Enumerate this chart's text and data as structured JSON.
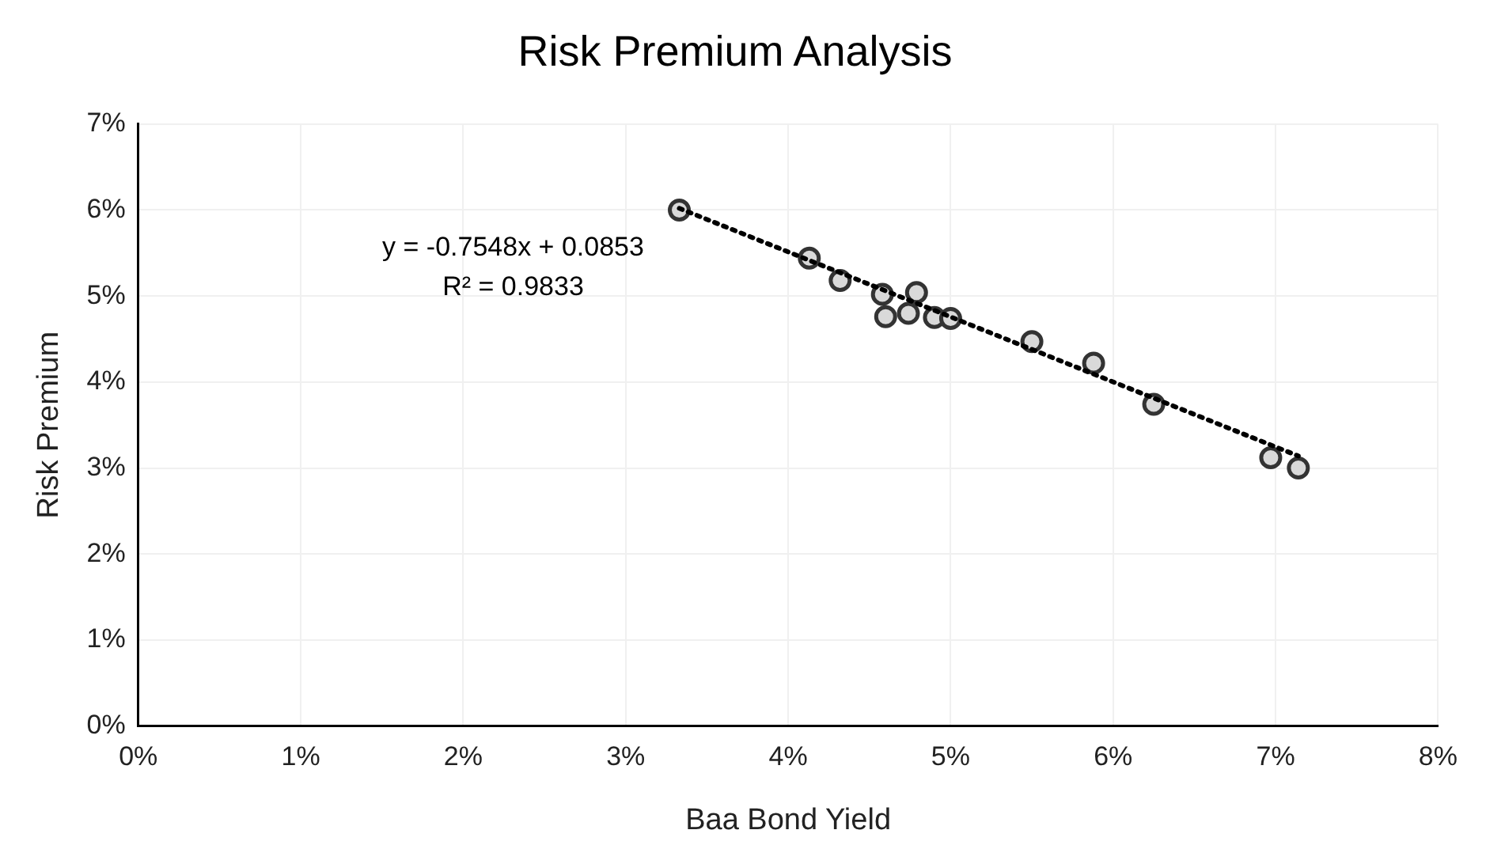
{
  "chart_data": {
    "type": "scatter",
    "title": "Risk Premium Analysis",
    "xlabel": "Baa Bond Yield",
    "ylabel": "Risk Premium",
    "x": [
      3.33,
      4.13,
      4.32,
      4.58,
      4.79,
      4.6,
      4.74,
      4.9,
      5.0,
      5.5,
      5.88,
      6.25,
      6.97,
      7.14
    ],
    "series": [
      {
        "color": "#333333",
        "values": [
          6.0,
          5.44,
          5.18,
          5.02,
          5.04,
          4.76,
          4.8,
          4.75,
          4.74,
          4.47,
          4.22,
          3.74,
          3.12,
          3.0
        ]
      },
      {
        "type": "line",
        "color": "#000000",
        "line_style": "dotted",
        "marker": "none",
        "x": [
          3.33,
          7.14
        ],
        "values": [
          6.02,
          3.14
        ]
      }
    ],
    "annotations": [
      "y = -0.7548x + 0.0853",
      "R² = 0.9833"
    ],
    "marker": "circle",
    "xlim": [
      0,
      8
    ],
    "ylim": [
      0,
      7
    ],
    "xticks": [
      {
        "value": 0,
        "label": "0%"
      },
      {
        "value": 1,
        "label": "1%"
      },
      {
        "value": 2,
        "label": "2%"
      },
      {
        "value": 3,
        "label": "3%"
      },
      {
        "value": 4,
        "label": "4%"
      },
      {
        "value": 5,
        "label": "5%"
      },
      {
        "value": 6,
        "label": "6%"
      },
      {
        "value": 7,
        "label": "7%"
      },
      {
        "value": 8,
        "label": "8%"
      }
    ],
    "yticks": [
      {
        "value": 0,
        "label": "0%"
      },
      {
        "value": 1,
        "label": "1%"
      },
      {
        "value": 2,
        "label": "2%"
      },
      {
        "value": 3,
        "label": "3%"
      },
      {
        "value": 4,
        "label": "4%"
      },
      {
        "value": 5,
        "label": "5%"
      },
      {
        "value": 6,
        "label": "6%"
      },
      {
        "value": 7,
        "label": "7%"
      }
    ],
    "grid": true,
    "legend": false
  }
}
